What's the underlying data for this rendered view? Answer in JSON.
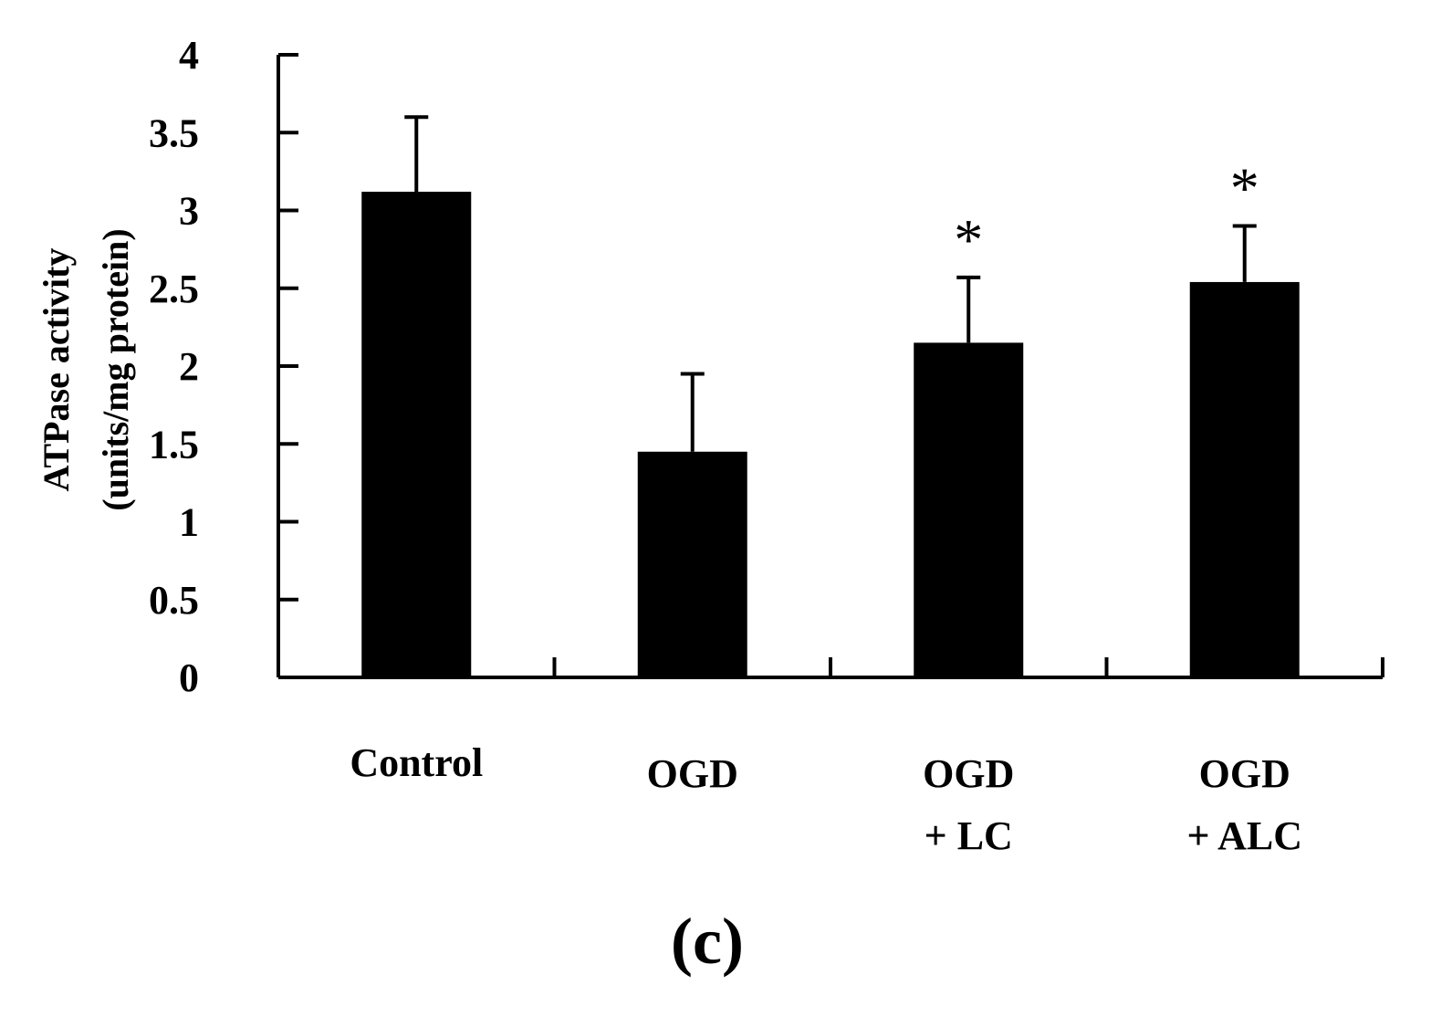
{
  "chart_data": {
    "type": "bar",
    "categories": [
      [
        "Control"
      ],
      [
        "OGD"
      ],
      [
        "OGD",
        "+ LC"
      ],
      [
        "OGD",
        "+ ALC"
      ]
    ],
    "values": [
      3.12,
      1.45,
      2.15,
      2.54
    ],
    "errors": [
      0.48,
      0.5,
      0.42,
      0.36
    ],
    "significance": [
      "",
      "",
      "*",
      "*"
    ],
    "ylabel_line1": "ATPase  activity",
    "ylabel_line2": "(units/mg protein)",
    "ylim": [
      0,
      4
    ],
    "yticks": [
      0,
      0.5,
      1,
      1.5,
      2,
      2.5,
      3,
      3.5,
      4
    ],
    "ytick_labels": [
      "0",
      "0.5",
      "1",
      "1.5",
      "2",
      "2.5",
      "3",
      "3.5",
      "4"
    ],
    "panel_label": "(c)",
    "bar_color": "#000000",
    "grid": false
  }
}
